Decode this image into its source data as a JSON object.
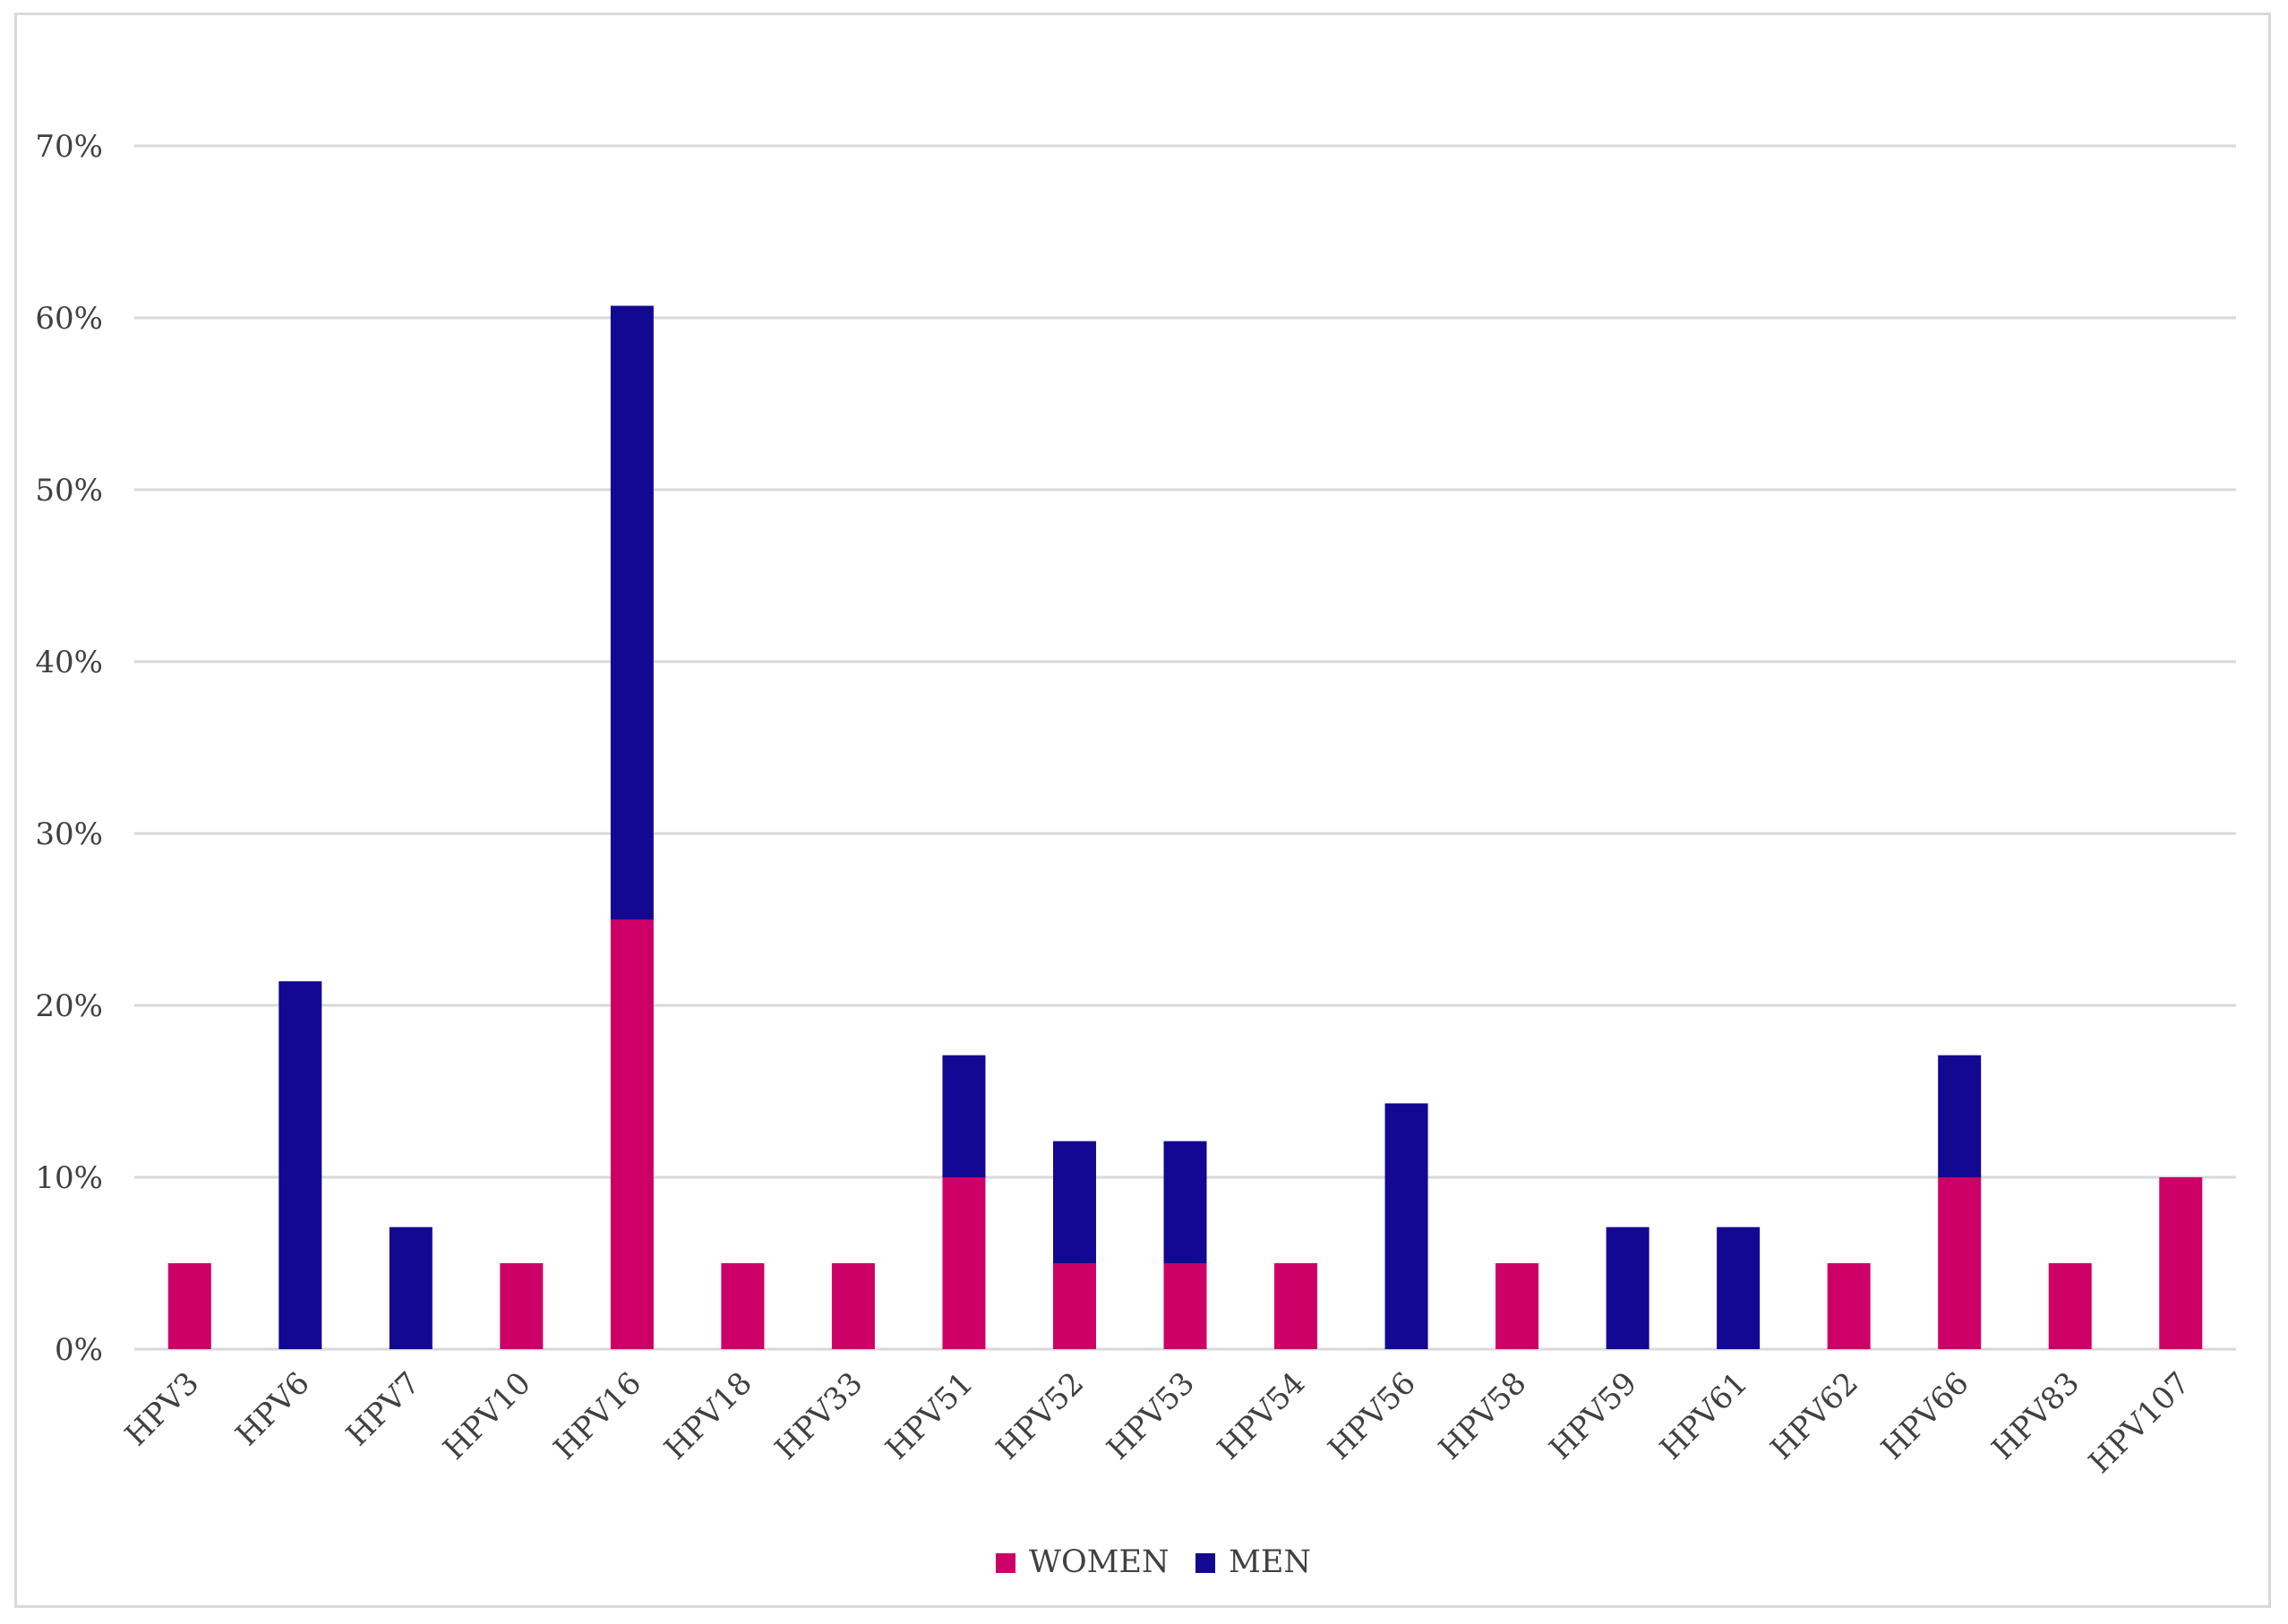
{
  "chart_data": {
    "type": "bar",
    "stacked": true,
    "title": "",
    "xlabel": "",
    "ylabel": "",
    "ylim": [
      0,
      70
    ],
    "y_ticks": [
      "0%",
      "10%",
      "20%",
      "30%",
      "40%",
      "50%",
      "60%",
      "70%"
    ],
    "grid": true,
    "legend_position": "bottom",
    "categories": [
      "HPV3",
      "HPV6",
      "HPV7",
      "HPV10",
      "HPV16",
      "HPV18",
      "HPV33",
      "HPV51",
      "HPV52",
      "HPV53",
      "HPV54",
      "HPV56",
      "HPV58",
      "HPV59",
      "HPV61",
      "HPV62",
      "HPV66",
      "HPV83",
      "HPV107"
    ],
    "series": [
      {
        "name": "WOMEN",
        "color": "#cc0066",
        "values": [
          5,
          0,
          0,
          5,
          25,
          5,
          5,
          10,
          5,
          5,
          5,
          0,
          5,
          0,
          0,
          5,
          10,
          5,
          10
        ]
      },
      {
        "name": "MEN",
        "color": "#120891",
        "values": [
          0,
          21.4,
          7.1,
          0,
          35.7,
          0,
          0,
          7.1,
          7.1,
          7.1,
          0,
          14.3,
          0,
          7.1,
          7.1,
          0,
          7.1,
          0,
          0
        ]
      }
    ]
  }
}
